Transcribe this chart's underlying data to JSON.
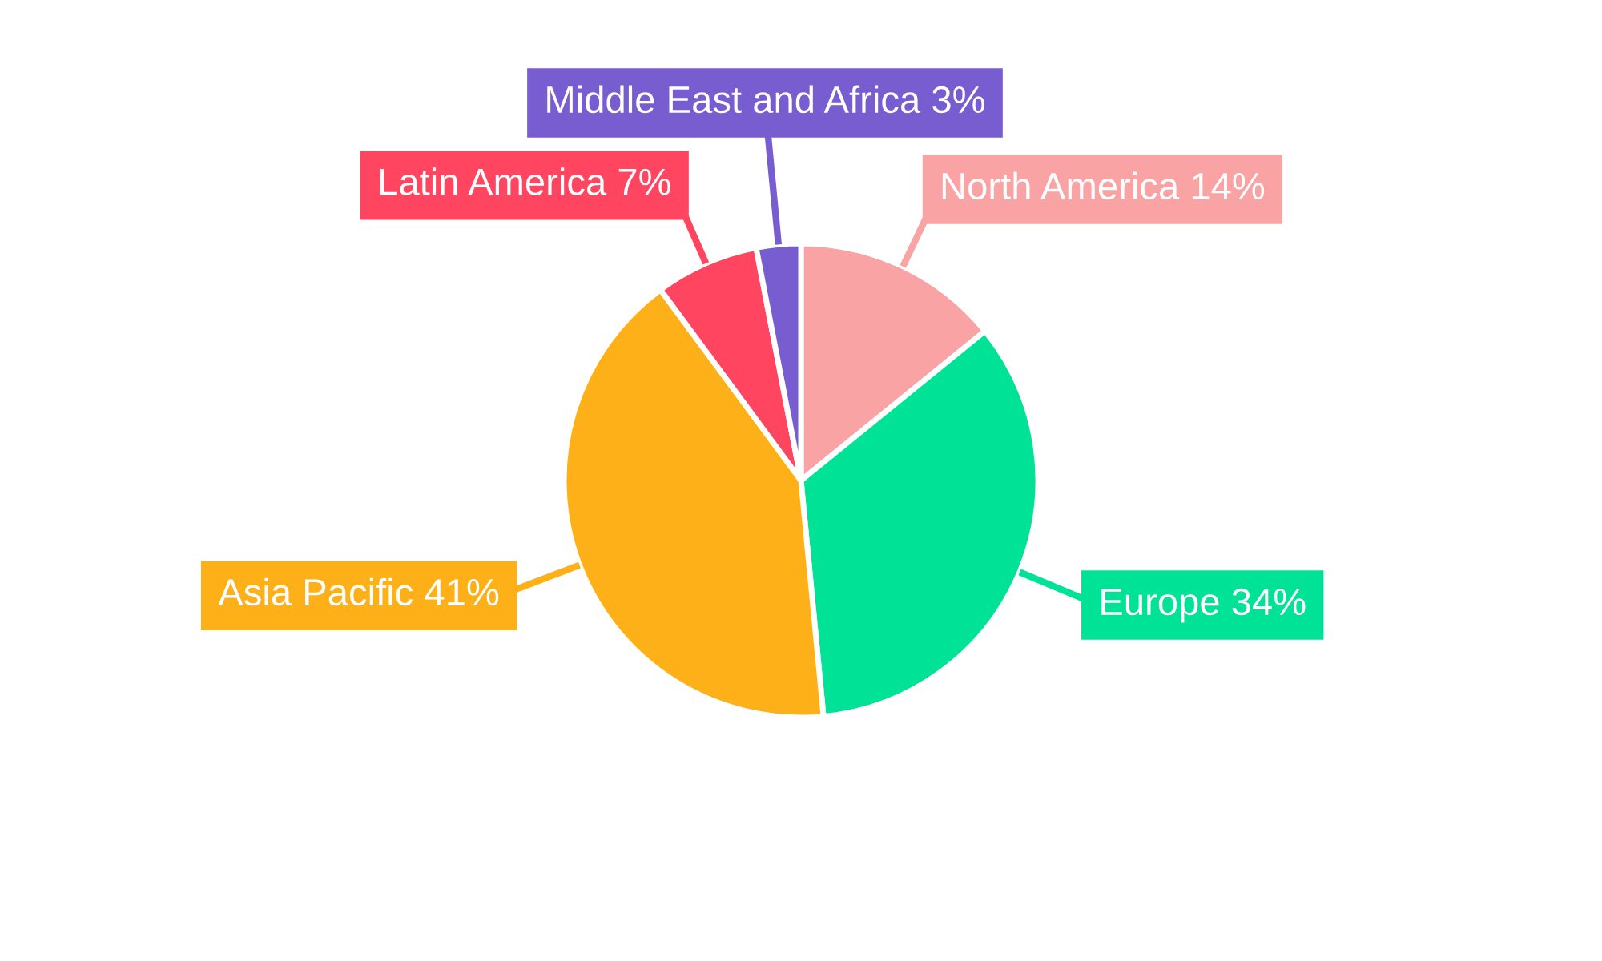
{
  "chart_data": {
    "type": "pie",
    "categories": [
      "North America",
      "Europe",
      "Asia Pacific",
      "Latin America",
      "Middle East and Africa"
    ],
    "values": [
      14,
      34,
      41,
      7,
      3
    ],
    "value_labels": [
      "14%",
      "34%",
      "41%",
      "7%",
      "3%"
    ],
    "colors": [
      "#f9a3a4",
      "#00e396",
      "#feb019",
      "#ff4560",
      "#775dd0"
    ],
    "legend": false
  }
}
